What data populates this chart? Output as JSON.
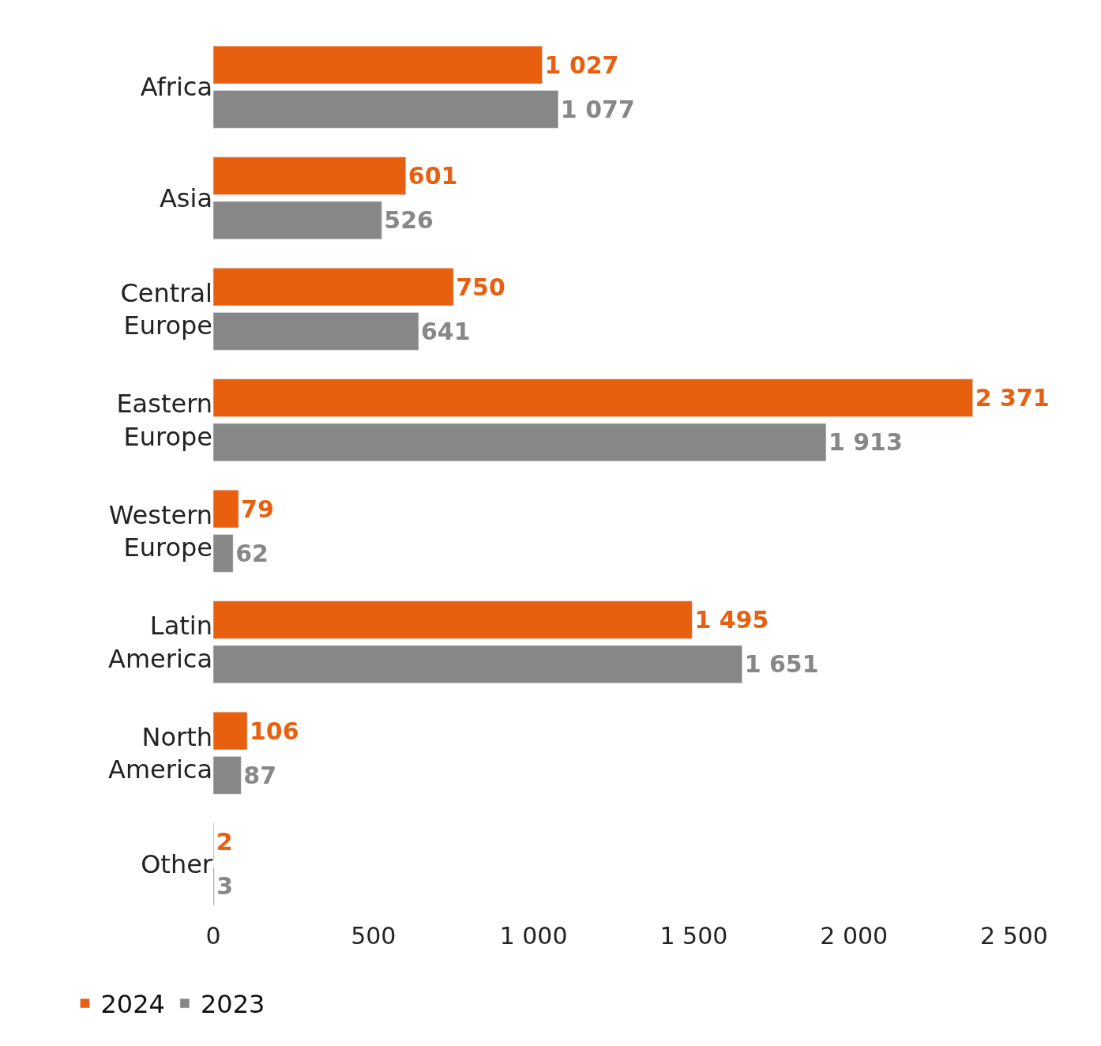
{
  "chart_data": {
    "type": "bar",
    "orientation": "horizontal",
    "categories": [
      "Africa",
      "Asia",
      "Central Europe",
      "Eastern Europe",
      "Western Europe",
      "Latin America",
      "North America",
      "Other"
    ],
    "series": [
      {
        "name": "2024",
        "color": "#e8600f",
        "values": [
          1027,
          601,
          750,
          2371,
          79,
          1495,
          106,
          2
        ],
        "value_labels": [
          "1 027",
          "601",
          "750",
          "2 371",
          "79",
          "1 495",
          "106",
          "2"
        ]
      },
      {
        "name": "2023",
        "color": "#878787",
        "values": [
          1077,
          526,
          641,
          1913,
          62,
          1651,
          87,
          3
        ],
        "value_labels": [
          "1 077",
          "526",
          "641",
          "1 913",
          "62",
          "1 651",
          "87",
          "3"
        ]
      }
    ],
    "xlim": [
      0,
      2500
    ],
    "xticks": [
      0,
      500,
      {
        "value": 1000,
        "label": "1 000"
      },
      {
        "value": 1500,
        "label": "1 500"
      },
      {
        "value": 2000,
        "label": "2 000"
      },
      {
        "value": 2500,
        "label": "2 500"
      }
    ],
    "legend": "bottom left"
  }
}
